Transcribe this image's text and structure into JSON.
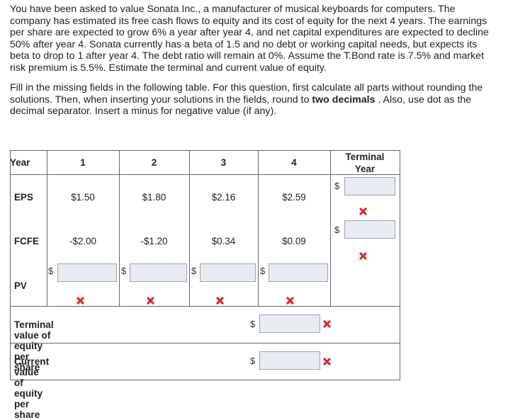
{
  "problem": {
    "paragraph1": "You have been asked to value Sonata Inc., a manufacturer of musical keyboards for computers. The company has estimated its free cash flows to equity and its cost of equity for the next 4 years. The earnings per share are expected to grow 6% a year after year 4, and net capital expenditures are expected to decline 50% after year 4. Sonata currently has a beta of 1.5 and no debt or working capital needs, but expects its beta to drop to 1 after year 4. The debt ratio will remain at 0%. Assume the T.Bond rate is 7.5% and market risk premium is 5.5%. Estimate the terminal and current value of equity.",
    "paragraph2_part1": "Fill in the missing fields in the following table. For this question, first calculate all parts without rounding the solutions. Then, when inserting your solutions in the fields, round to ",
    "paragraph2_bold": "two decimals",
    "paragraph2_part2": " . Also, use dot as the decimal separator. Insert a minus for negative value (if any)."
  },
  "table": {
    "headers": {
      "year": "Year",
      "y1": "1",
      "y2": "2",
      "y3": "3",
      "y4": "4",
      "terminal_line1": "Terminal",
      "terminal_line2": "Year"
    },
    "rows": {
      "eps_label": "EPS",
      "eps": [
        "$1.50",
        "$1.80",
        "$2.16",
        "$2.59"
      ],
      "fcfe_label": "FCFE",
      "fcfe": [
        "-$2.00",
        "-$1.20",
        "$0.34",
        "$0.09"
      ],
      "pv_label": "PV"
    },
    "currency_symbol": "$",
    "terminal_value_label": "Terminal value of equity per share",
    "current_value_label": "Current value of equity per share"
  },
  "icons": {
    "incorrect": "x-mark-icon"
  },
  "colors": {
    "input_bg": "#e8ebf1",
    "error_red": "#d8262e"
  }
}
